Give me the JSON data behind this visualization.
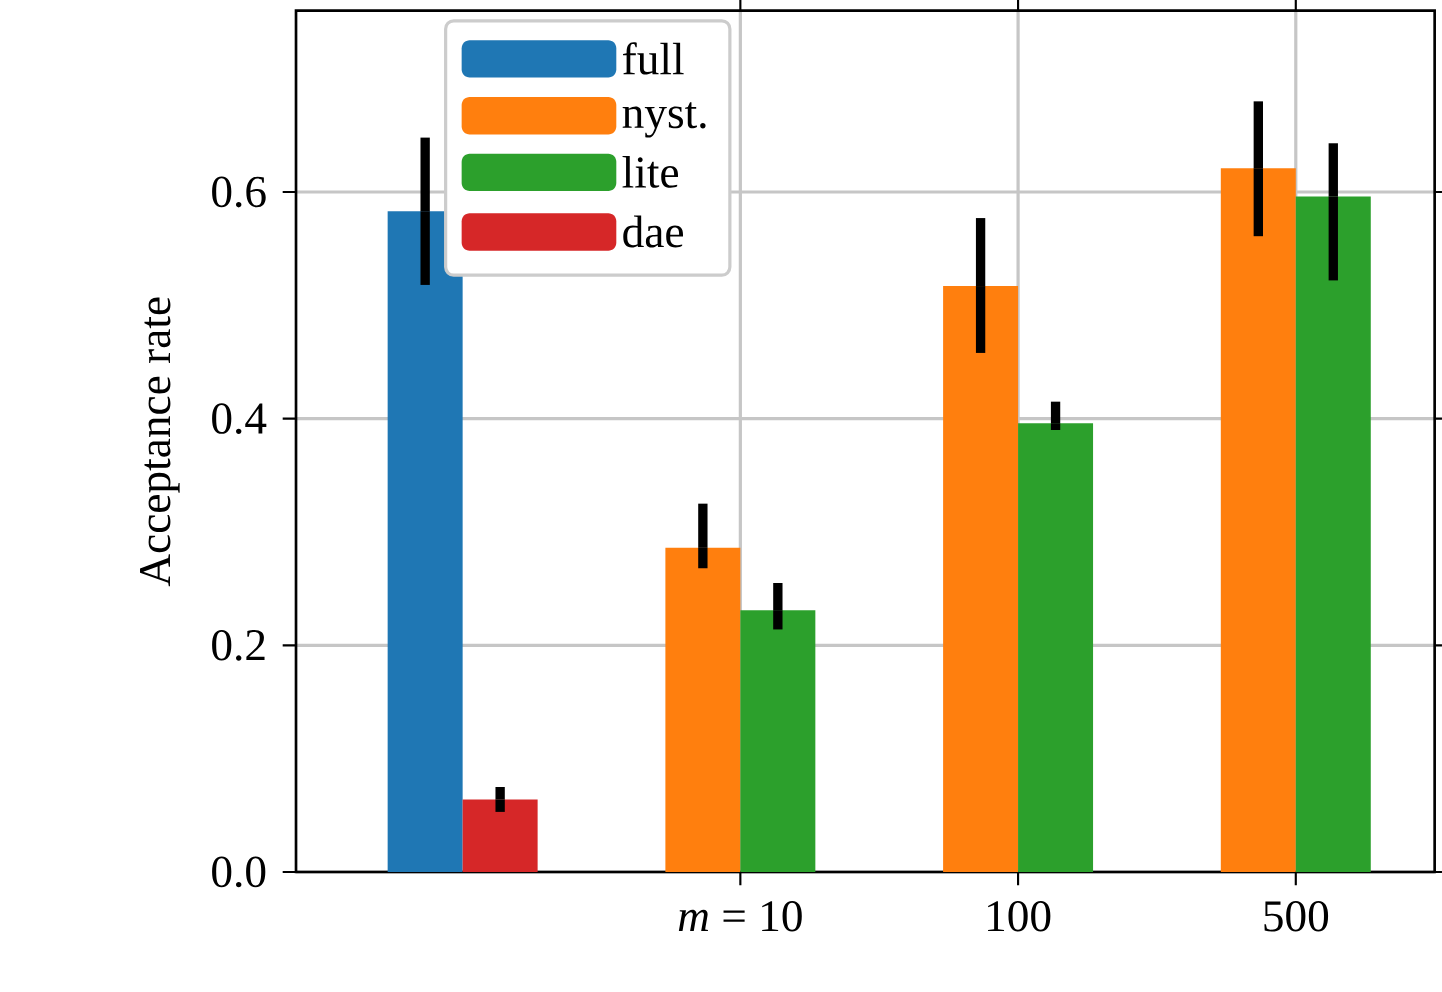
{
  "chart_data": {
    "type": "bar",
    "ylabel": "Acceptance rate",
    "categories": [
      null,
      "*m* = 10",
      "100",
      "500"
    ],
    "series": [
      {
        "name": "full",
        "color": "#1f77b4",
        "values": [
          0.583,
          null,
          null,
          null
        ],
        "errors": [
          [
            0.518,
            0.648
          ],
          null,
          null,
          null
        ]
      },
      {
        "name": "nyst.",
        "color": "#ff7f0e",
        "values": [
          null,
          0.286,
          0.517,
          0.621
        ],
        "errors": [
          null,
          [
            0.268,
            0.325
          ],
          [
            0.458,
            0.577
          ],
          [
            0.561,
            0.68
          ]
        ]
      },
      {
        "name": "lite",
        "color": "#2ca02c",
        "values": [
          null,
          0.231,
          0.396,
          0.596
        ],
        "errors": [
          null,
          [
            0.214,
            0.255
          ],
          [
            0.39,
            0.415
          ],
          [
            0.522,
            0.643
          ]
        ]
      },
      {
        "name": "dae",
        "color": "#d62728",
        "values": [
          0.064,
          null,
          null,
          null
        ],
        "errors": [
          [
            0.053,
            0.075
          ],
          null,
          null,
          null
        ]
      }
    ],
    "ylim": [
      0,
      0.76
    ],
    "yticks": [
      {
        "value": 0,
        "label": "0.0"
      },
      {
        "value": 0.2,
        "label": "0.2"
      },
      {
        "value": 0.4,
        "label": "0.4"
      },
      {
        "value": 0.6,
        "label": "0.6"
      }
    ],
    "grid": true,
    "legend": "top left"
  }
}
